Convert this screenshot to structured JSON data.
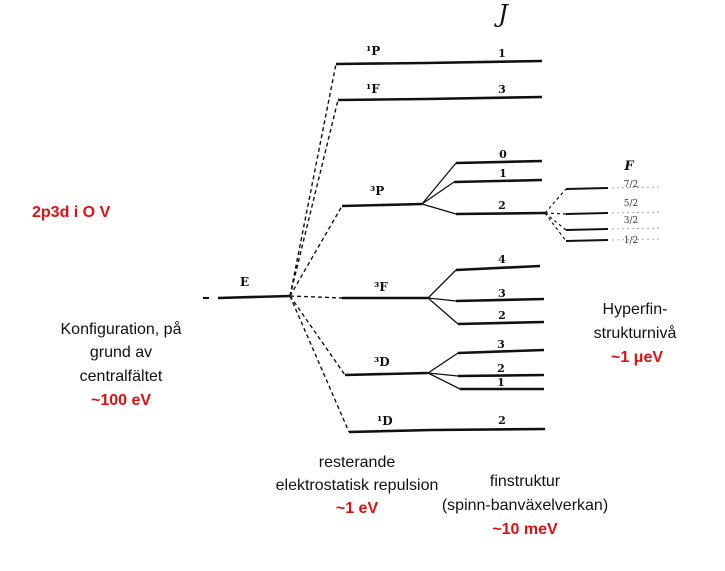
{
  "title": "2p3d i O V",
  "j_header": "J",
  "f_header": "F",
  "config": {
    "level": "E",
    "desc_lines": [
      "Konfiguration, på",
      "grund av",
      "centralfältet"
    ],
    "energy": "~100 eV"
  },
  "terms": [
    {
      "term": "¹P",
      "j": [
        "1"
      ]
    },
    {
      "term": "¹F",
      "j": [
        "3"
      ]
    },
    {
      "term": "³P",
      "j": [
        "0",
        "1",
        "2"
      ]
    },
    {
      "term": "³F",
      "j": [
        "4",
        "3",
        "2"
      ]
    },
    {
      "term": "³D",
      "j": [
        "3",
        "2",
        "1"
      ]
    },
    {
      "term": "¹D",
      "j": [
        "2"
      ]
    }
  ],
  "hyperfine": {
    "f_values": [
      "7/2",
      "5/2",
      "3/2",
      "1/2"
    ],
    "desc_lines": [
      "Hyperfin-",
      "strukturnivå"
    ],
    "energy": "~1 μeV"
  },
  "electrostatic": {
    "desc_lines": [
      "resterande",
      "elektrostatisk repulsion"
    ],
    "energy": "~1 eV"
  },
  "fine": {
    "desc_lines": [
      "finstruktur",
      "(spinn-banväxelverkan)"
    ],
    "energy": "~10 meV"
  },
  "colors": {
    "ink": "#111111",
    "accent": "#e01010"
  }
}
